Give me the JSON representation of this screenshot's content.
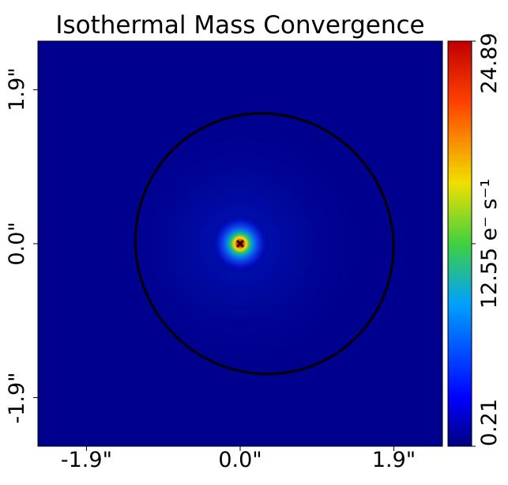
{
  "chart_data": {
    "type": "heatmap",
    "title": "Isothermal Mass Convergence",
    "x_ticks": [
      {
        "value": -1.9,
        "label": "-1.9\""
      },
      {
        "value": 0.0,
        "label": "0.0\""
      },
      {
        "value": 1.9,
        "label": "1.9\""
      }
    ],
    "y_ticks": [
      {
        "value": 1.9,
        "label": "1.9\""
      },
      {
        "value": 0.0,
        "label": "0.0\""
      },
      {
        "value": -1.9,
        "label": "-1.9\""
      }
    ],
    "xlim": [
      -2.5,
      2.5
    ],
    "ylim": [
      -2.5,
      2.5
    ],
    "colorbar": {
      "min": 0.21,
      "max": 24.89,
      "tick_labels": [
        "0.21",
        "12.55 e⁻ s⁻¹",
        "24.89"
      ],
      "colormap": "jet"
    },
    "profile": {
      "center": [
        0.0,
        0.0
      ],
      "model": "isothermal",
      "peak_value": 24.89,
      "background_value": 0.21
    },
    "critical_curve": {
      "center": [
        0.3,
        0.0
      ],
      "semi_axes": [
        1.6,
        1.6
      ],
      "rotation_deg": -35,
      "color": "#000000"
    },
    "center_marker": {
      "x": 0.0,
      "y": 0.0,
      "color": "#000000"
    }
  }
}
